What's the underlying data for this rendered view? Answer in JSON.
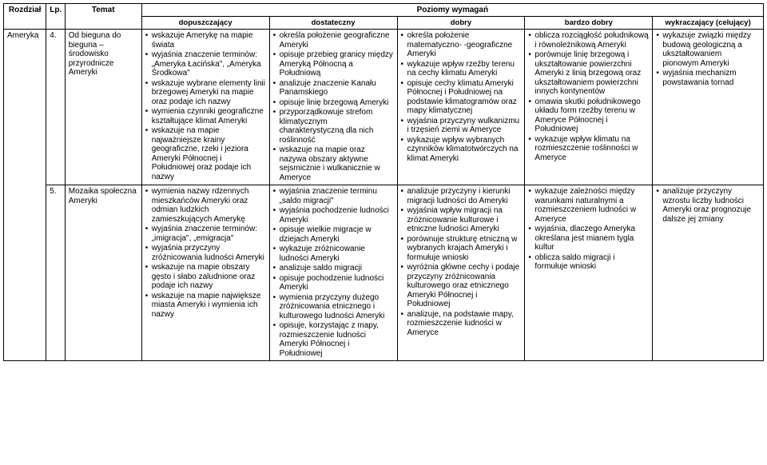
{
  "headers": {
    "rozdzial": "Rozdział",
    "lp": "Lp.",
    "temat": "Temat",
    "poziomy": "Poziomy wymagań",
    "dopuszczajacy": "dopuszczający",
    "dostateczny": "dostateczny",
    "dobry": "dobry",
    "bardzo_dobry": "bardzo dobry",
    "wykraczajacy": "wykraczający (celujący)"
  },
  "rows": [
    {
      "rozdzial": "Ameryka",
      "lp": "4.",
      "temat": "Od bieguna do bieguna – środowisko przyrodnicze Ameryki",
      "dopuszczajacy": [
        "wskazuje Amerykę na mapie świata",
        "wyjaśnia znaczenie terminów: „Ameryka Łacińska\", „Ameryka Środkowa\"",
        "wskazuje wybrane elementy linii brzegowej Ameryki na mapie oraz podaje ich nazwy",
        "wymienia czynniki geograficzne kształtujące klimat Ameryki",
        "wskazuje na mapie najważniejsze krainy geograficzne, rzeki i jeziora Ameryki Północnej i Południowej oraz podaje ich nazwy"
      ],
      "dostateczny": [
        "określa położenie geograficzne Ameryki",
        "opisuje przebieg granicy między Ameryką Północną a Południową",
        "analizuje znaczenie Kanału Panamskiego",
        "opisuje linię brzegową Ameryki",
        "przyporządkowuje strefom klimatycznym charakterystyczną dla nich roślinność",
        "wskazuje na mapie oraz nazywa obszary aktywne sejsmicznie i wulkanicznie w Ameryce"
      ],
      "dobry": [
        "określa położenie matematyczno- -geograficzne Ameryki",
        "wykazuje wpływ rzeźby terenu na cechy klimatu Ameryki",
        "opisuje cechy klimatu Ameryki Północnej i Południowej na podstawie klimatogramów oraz mapy klimatycznej",
        "wyjaśnia przyczyny wulkanizmu i trzęsień ziemi w Ameryce",
        "wykazuje wpływ wybranych czynników klimatotwórczych na klimat Ameryki"
      ],
      "bardzo_dobry": [
        "oblicza rozciągłość południkową i równoleżnikową Ameryki",
        "porównuje linię brzegową i ukształtowanie powierzchni Ameryki z linią brzegową oraz ukształtowaniem powierzchni innych kontynentów",
        "omawia skutki południkowego układu form rzeźby terenu w Ameryce Północnej i Południowej",
        "wykazuje wpływ klimatu na rozmieszczenie roślinności w Ameryce"
      ],
      "wykraczajacy": [
        "wykazuje związki między budową geologiczną a ukształtowaniem pionowym Ameryki",
        "wyjaśnia mechanizm powstawania tornad"
      ]
    },
    {
      "rozdzial": "",
      "lp": "5.",
      "temat": "Mozaika społeczna Ameryki",
      "dopuszczajacy": [
        "wymienia nazwy rdzennych mieszkańców Ameryki oraz odmian ludzkich zamieszkujących Amerykę",
        "wyjaśnia znaczenie terminów: „imigracja\", „emigracja\"",
        "wyjaśnia przyczyny zróżnicowania ludności Ameryki",
        "wskazuje na mapie obszary gęsto i słabo zaludnione oraz podaje ich nazwy",
        "wskazuje na mapie największe miasta Ameryki i wymienia ich nazwy"
      ],
      "dostateczny": [
        "wyjaśnia znaczenie terminu „saldo migracji\"",
        "wyjaśnia pochodzenie ludności Ameryki",
        "opisuje wielkie migracje w dziejach Ameryki",
        "wykazuje zróżnicowanie ludności Ameryki",
        "analizuje saldo migracji",
        "opisuje pochodzenie ludności Ameryki",
        "wymienia przyczyny dużego zróżnicowania etnicznego i kulturowego ludności Ameryki",
        "opisuje, korzystając z mapy, rozmieszczenie ludności Ameryki Północnej i Południowej"
      ],
      "dobry": [
        "analizuje przyczyny i kierunki migracji ludności do Ameryki",
        "wyjaśnia wpływ migracji na zróżnicowanie kulturowe i etniczne ludności Ameryki",
        "porównuje strukturę etniczną w wybranych krajach Ameryki i formułuje wnioski",
        "wyróżnia główne cechy i podaje przyczyny zróżnicowania kulturowego oraz etnicznego Ameryki Północnej i Południowej",
        "analizuje, na podstawie mapy, rozmieszczenie ludności w Ameryce"
      ],
      "bardzo_dobry": [
        "wykazuje zależności między warunkami naturalnymi a rozmieszczeniem ludności w Ameryce",
        "wyjaśnia, dlaczego Ameryka określana jest mianem tygla kultur",
        "oblicza saldo migracji i formułuje wnioski"
      ],
      "wykraczajacy": [
        "analizuje przyczyny wzrostu liczby ludności Ameryki oraz prognozuje dalsze jej zmiany"
      ]
    }
  ]
}
